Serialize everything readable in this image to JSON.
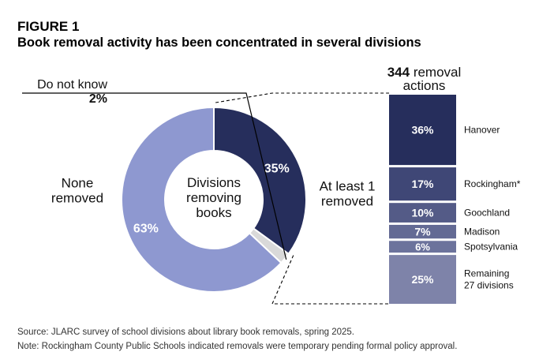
{
  "figure": {
    "label": "FIGURE 1",
    "title": "Book removal activity has been concentrated in several divisions"
  },
  "chart_data": [
    {
      "type": "pie",
      "center_label": [
        "Divisions",
        "removing",
        "books"
      ],
      "slices": [
        {
          "label": [
            "At least 1",
            "removed"
          ],
          "value": 35,
          "value_label": "35%",
          "color": "#262e5c"
        },
        {
          "label": [
            "Do not know"
          ],
          "value": 2,
          "value_label": "2%",
          "color": "#d9d9d9"
        },
        {
          "label": [
            "None",
            "removed"
          ],
          "value": 63,
          "value_label": "63%",
          "color": "#8e98d0"
        }
      ]
    },
    {
      "type": "bar",
      "stacked": true,
      "title": [
        "344 removal",
        "actions"
      ],
      "title_number": "344",
      "total": 344,
      "segments": [
        {
          "name": [
            "Hanover"
          ],
          "value": 36,
          "value_label": "36%",
          "color": "#262e5c"
        },
        {
          "name": [
            "Rockingham*"
          ],
          "value": 17,
          "value_label": "17%",
          "color": "#3f4776"
        },
        {
          "name": [
            "Goochland"
          ],
          "value": 10,
          "value_label": "10%",
          "color": "#545b87"
        },
        {
          "name": [
            "Madison"
          ],
          "value": 7,
          "value_label": "7%",
          "color": "#636a94"
        },
        {
          "name": [
            "Spotsylvania"
          ],
          "value": 6,
          "value_label": "6%",
          "color": "#6c739c"
        },
        {
          "name": [
            "Remaining",
            "27 divisions"
          ],
          "value": 25,
          "value_label": "25%",
          "color": "#7e83a9"
        }
      ]
    }
  ],
  "footer": {
    "source": "Source: JLARC survey of school divisions about library book removals, spring 2025.",
    "note": "Note: Rockingham County Public Schools indicated removals were temporary pending formal policy approval."
  }
}
